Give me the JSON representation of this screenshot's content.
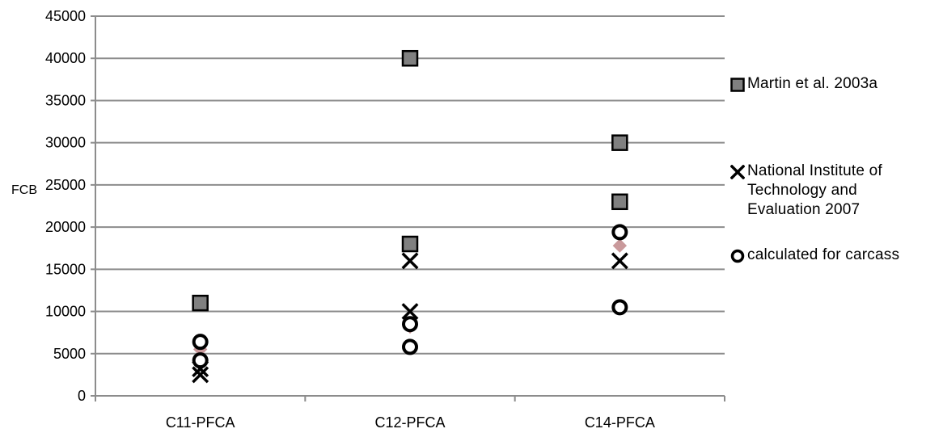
{
  "chart_data": {
    "type": "scatter",
    "title": "",
    "xlabel": "",
    "ylabel": "FCB",
    "categories": [
      "C11-PFCA",
      "C12-PFCA",
      "C14-PFCA"
    ],
    "ylim": [
      0,
      45000
    ],
    "yticks": [
      0,
      5000,
      10000,
      15000,
      20000,
      25000,
      30000,
      35000,
      40000,
      45000
    ],
    "grid": "horizontal",
    "legend_position": "right",
    "series": [
      {
        "name": "Martin et al. 2003a",
        "marker": "square",
        "color": "#808080",
        "points": [
          {
            "category": "C11-PFCA",
            "y": 11000
          },
          {
            "category": "C12-PFCA",
            "y": 40000
          },
          {
            "category": "C12-PFCA",
            "y": 18000
          },
          {
            "category": "C14-PFCA",
            "y": 30000
          },
          {
            "category": "C14-PFCA",
            "y": 23000
          }
        ]
      },
      {
        "name": "",
        "marker": "diamond",
        "color": "#c9999b",
        "points": [
          {
            "category": "C11-PFCA",
            "y": 5500
          },
          {
            "category": "C12-PFCA",
            "y": 8200
          },
          {
            "category": "C14-PFCA",
            "y": 17800
          }
        ]
      },
      {
        "name": "National Institute of Technology and Evaluation 2007",
        "marker": "x",
        "color": "#000000",
        "points": [
          {
            "category": "C11-PFCA",
            "y": 2500
          },
          {
            "category": "C11-PFCA",
            "y": 3200
          },
          {
            "category": "C12-PFCA",
            "y": 16000
          },
          {
            "category": "C12-PFCA",
            "y": 10000
          },
          {
            "category": "C14-PFCA",
            "y": 16000
          }
        ]
      },
      {
        "name": "calculated for carcass",
        "marker": "circle",
        "color": "#000000",
        "points": [
          {
            "category": "C11-PFCA",
            "y": 6400
          },
          {
            "category": "C11-PFCA",
            "y": 4200
          },
          {
            "category": "C12-PFCA",
            "y": 8500
          },
          {
            "category": "C12-PFCA",
            "y": 5800
          },
          {
            "category": "C14-PFCA",
            "y": 19400
          },
          {
            "category": "C14-PFCA",
            "y": 10500
          }
        ]
      }
    ],
    "legend": [
      {
        "marker": "square",
        "text": "Martin et al. 2003a"
      },
      {
        "marker": "x",
        "text": "National Institute of Technology and Evaluation 2007"
      },
      {
        "marker": "circle",
        "text": "calculated for carcass"
      }
    ]
  }
}
